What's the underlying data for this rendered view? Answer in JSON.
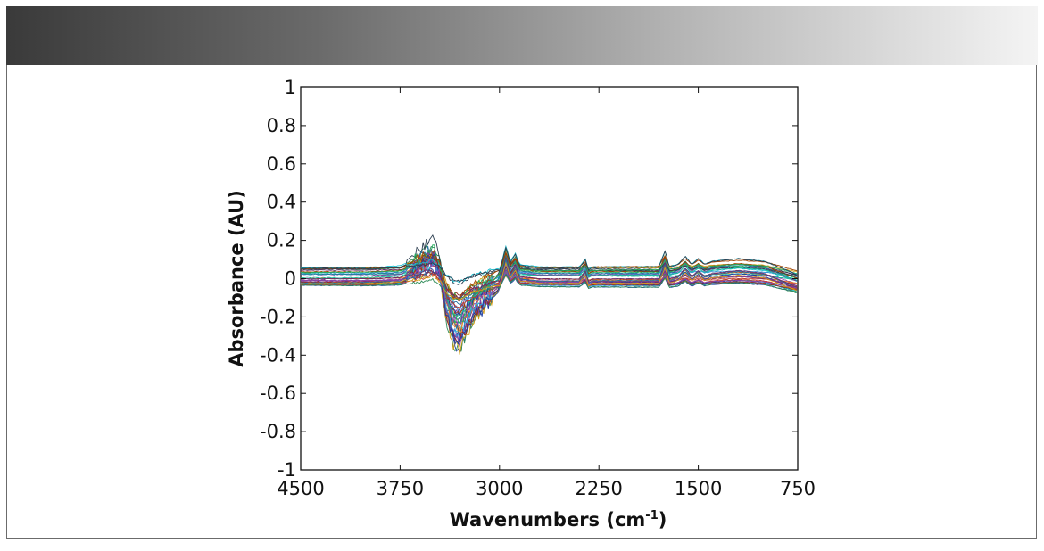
{
  "chart_data": {
    "type": "line",
    "title": "",
    "xlabel": "Wavenumbers (cm",
    "xlabel_superscript": "-1",
    "xlabel_close": ")",
    "ylabel": "Absorbance (AU)",
    "xlim": [
      4500,
      750
    ],
    "ylim": [
      -1,
      1
    ],
    "xticks": [
      4500,
      3750,
      3000,
      2250,
      1500,
      750
    ],
    "xtick_labels": [
      "4500",
      "3750",
      "3000",
      "2250",
      "1500",
      "750"
    ],
    "yticks": [
      1,
      0.8,
      0.6,
      0.4,
      0.2,
      0,
      -0.2,
      -0.4,
      -0.6,
      -0.8,
      -1
    ],
    "ytick_labels": [
      "1",
      "0.8",
      "0.6",
      "0.4",
      "0.2",
      "0",
      "-0.2",
      "-0.4",
      "-0.6",
      "-0.8",
      "-1"
    ],
    "grid": false,
    "series_count": 40,
    "series_colors": [
      "#1f3fa0",
      "#c0392b",
      "#2e8b57",
      "#8e44ad",
      "#17becf",
      "#d4a017",
      "#6b2d6b",
      "#2c3e50",
      "#e67e22",
      "#1abc9c",
      "#7f3f98",
      "#3498db",
      "#922b21",
      "#27ae60",
      "#2471a3",
      "#a04000"
    ],
    "base_spectrum": [
      [
        4500,
        0.04
      ],
      [
        4000,
        0.04
      ],
      [
        3750,
        0.045
      ],
      [
        3600,
        0.08
      ],
      [
        3500,
        0.1
      ],
      [
        3450,
        0.06
      ],
      [
        3400,
        -0.03
      ],
      [
        3350,
        -0.08
      ],
      [
        3300,
        -0.09
      ],
      [
        3250,
        -0.06
      ],
      [
        3200,
        -0.03
      ],
      [
        3100,
        0.0
      ],
      [
        3000,
        0.03
      ],
      [
        2950,
        0.12
      ],
      [
        2920,
        0.06
      ],
      [
        2880,
        0.09
      ],
      [
        2850,
        0.05
      ],
      [
        2700,
        0.04
      ],
      [
        2400,
        0.04
      ],
      [
        2350,
        0.07
      ],
      [
        2330,
        0.03
      ],
      [
        2300,
        0.04
      ],
      [
        1800,
        0.04
      ],
      [
        1750,
        0.1
      ],
      [
        1720,
        0.04
      ],
      [
        1650,
        0.05
      ],
      [
        1600,
        0.08
      ],
      [
        1550,
        0.05
      ],
      [
        1500,
        0.07
      ],
      [
        1450,
        0.05
      ],
      [
        1400,
        0.06
      ],
      [
        1200,
        0.07
      ],
      [
        1000,
        0.06
      ],
      [
        900,
        0.04
      ],
      [
        750,
        0.01
      ]
    ],
    "offset_range": [
      -0.035,
      0.06
    ],
    "oh_region_amplitude_range": [
      0.4,
      2.6
    ]
  }
}
